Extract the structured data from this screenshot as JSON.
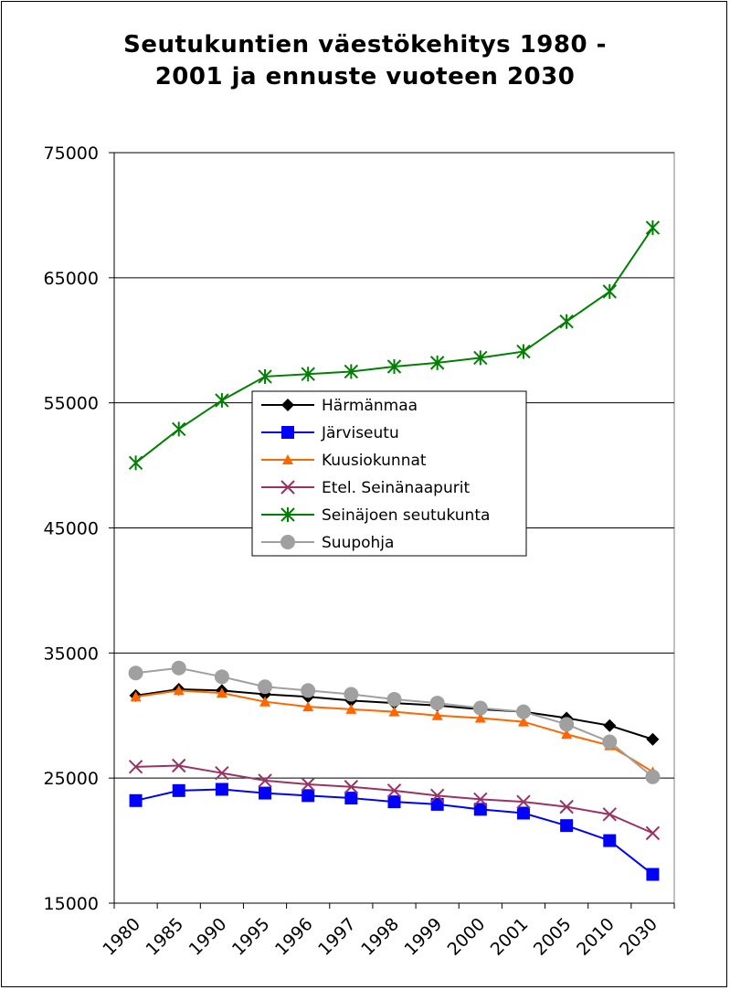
{
  "chart_data": {
    "type": "line",
    "title_line1": "Seutukuntien väestökehitys 1980 -",
    "title_line2": "2001 ja ennuste vuoteen 2030",
    "categories": [
      "1980",
      "1985",
      "1990",
      "1995",
      "1996",
      "1997",
      "1998",
      "1999",
      "2000",
      "2001",
      "2005",
      "2010",
      "2030"
    ],
    "ylim": [
      15000,
      75000
    ],
    "yticks": [
      15000,
      25000,
      35000,
      45000,
      55000,
      65000,
      75000
    ],
    "ytick_labels": [
      "15000",
      "25000",
      "35000",
      "45000",
      "55000",
      "65000",
      "75000"
    ],
    "grid": true,
    "legend_position": "center",
    "series": [
      {
        "name": "Härmänmaa",
        "color": "#000000",
        "marker": "diamond",
        "values": [
          31600,
          32100,
          32000,
          31700,
          31500,
          31200,
          31000,
          30800,
          30500,
          30300,
          29800,
          29200,
          28100
        ]
      },
      {
        "name": "Järviseutu",
        "color": "#0000ff",
        "marker": "square",
        "values": [
          23200,
          24000,
          24100,
          23800,
          23600,
          23400,
          23100,
          22900,
          22500,
          22200,
          21200,
          20000,
          17300
        ]
      },
      {
        "name": "Kuusiokunnat",
        "color": "#ff6600",
        "marker": "triangle",
        "values": [
          31500,
          32000,
          31800,
          31100,
          30700,
          30500,
          30300,
          30000,
          29800,
          29500,
          28500,
          27600,
          25500
        ]
      },
      {
        "name": "Etel. Seinänaapurit",
        "color": "#993366",
        "marker": "x",
        "values": [
          25900,
          26000,
          25400,
          24800,
          24500,
          24300,
          24000,
          23600,
          23300,
          23100,
          22700,
          22100,
          20600
        ]
      },
      {
        "name": "Seinäjoen seutukunta",
        "color": "#008000",
        "marker": "star",
        "values": [
          50200,
          52900,
          55200,
          57100,
          57300,
          57500,
          57900,
          58200,
          58600,
          59100,
          61500,
          63900,
          69000
        ]
      },
      {
        "name": "Suupohja",
        "color": "#a0a0a0",
        "marker": "circle",
        "values": [
          33400,
          33800,
          33100,
          32300,
          32000,
          31700,
          31300,
          31000,
          30600,
          30300,
          29300,
          27900,
          25100
        ]
      }
    ]
  }
}
